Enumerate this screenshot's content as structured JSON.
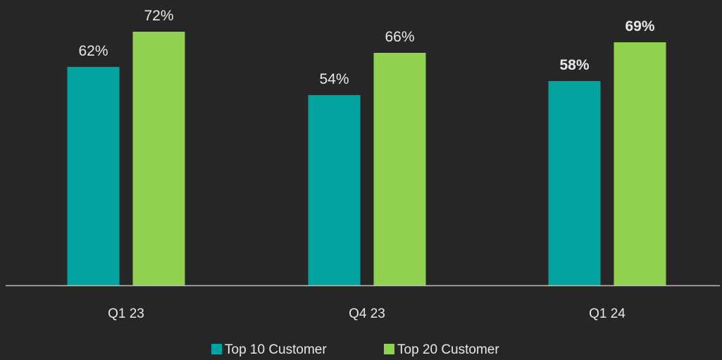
{
  "chart_data": {
    "type": "bar",
    "categories": [
      "Q1 23",
      "Q4 23",
      "Q1 24"
    ],
    "series": [
      {
        "name": "Top 10 Customer",
        "color": "#03a29f",
        "values": [
          62,
          54,
          58
        ],
        "labels": [
          "62%",
          "54%",
          "58%"
        ],
        "bold": [
          false,
          false,
          true
        ]
      },
      {
        "name": "Top 20 Customer",
        "color": "#92d050",
        "values": [
          72,
          66,
          69
        ],
        "labels": [
          "72%",
          "66%",
          "69%"
        ],
        "bold": [
          false,
          false,
          true
        ]
      }
    ],
    "value_unit": "%",
    "ylim": [
      0,
      80
    ],
    "grid": false,
    "legend_position": "bottom-center",
    "axis_color": "#bfbfbf",
    "text_color": "#e8e8e8",
    "background": "#262626"
  }
}
